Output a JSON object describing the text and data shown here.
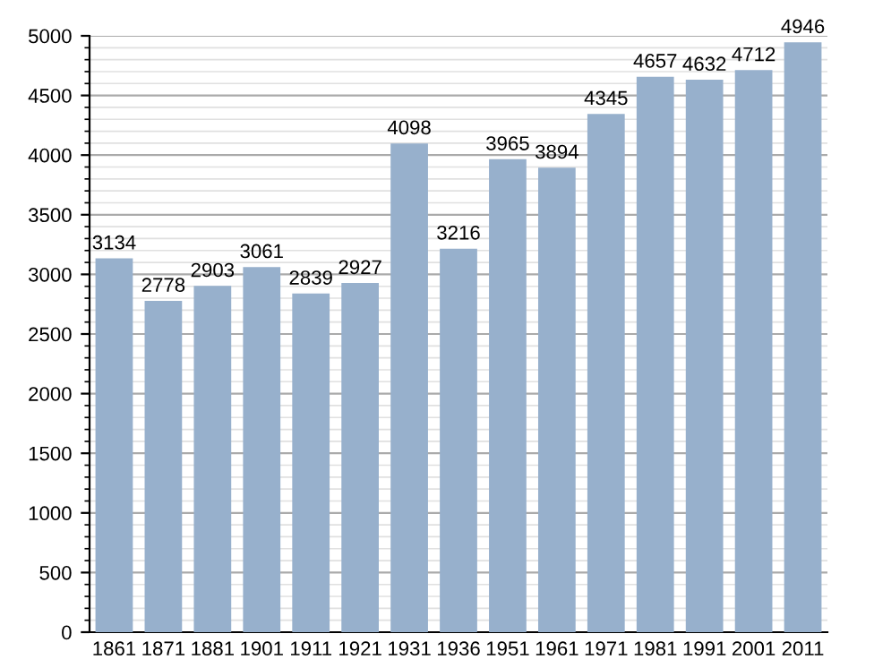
{
  "chart_data": {
    "type": "bar",
    "categories": [
      "1861",
      "1871",
      "1881",
      "1901",
      "1911",
      "1921",
      "1931",
      "1936",
      "1951",
      "1961",
      "1971",
      "1981",
      "1991",
      "2001",
      "2011"
    ],
    "values": [
      3134,
      2778,
      2903,
      3061,
      2839,
      2927,
      4098,
      3216,
      3965,
      3894,
      4345,
      4657,
      4632,
      4712,
      4946
    ],
    "color": "#97b0cc",
    "ylim": [
      0,
      5000
    ],
    "yticks": [
      0,
      500,
      1000,
      1500,
      2000,
      2500,
      3000,
      3500,
      4000,
      4500,
      5000
    ],
    "grid": "y",
    "data_labels": true
  }
}
